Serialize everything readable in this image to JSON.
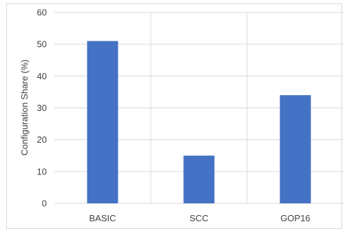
{
  "chart_data": {
    "type": "bar",
    "title": "",
    "xlabel": "",
    "ylabel": "Configuration Share (%)",
    "categories": [
      "BASIC",
      "SCC",
      "GOP16"
    ],
    "values": [
      51,
      15,
      34
    ],
    "ylim": [
      0,
      60
    ],
    "yticks": [
      0,
      10,
      20,
      30,
      40,
      50,
      60
    ],
    "grid": true,
    "bar_color": "#4472C4",
    "grid_color": "#d9d9d9"
  }
}
